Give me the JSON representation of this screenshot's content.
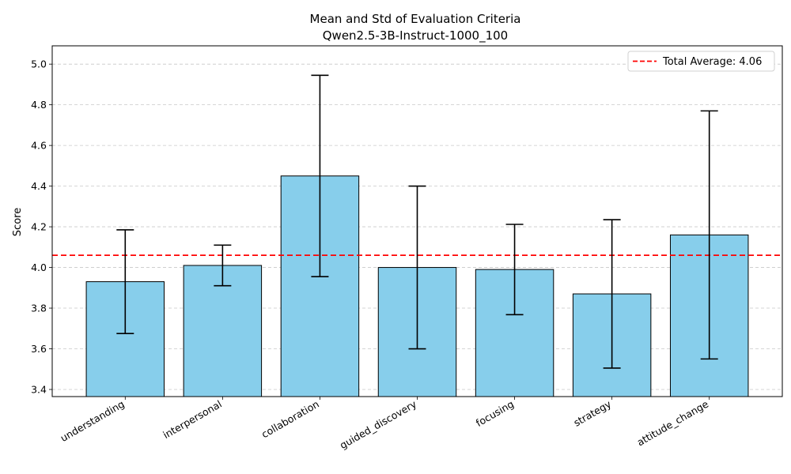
{
  "chart_data": {
    "type": "bar",
    "title": "Mean and Std of Evaluation Criteria",
    "subtitle": "Qwen2.5-3B-Instruct-1000_100",
    "xlabel": "",
    "ylabel": "Score",
    "ylim": [
      3.365,
      5.09
    ],
    "yticks": [
      3.4,
      3.6,
      3.8,
      4.0,
      4.2,
      4.4,
      4.6,
      4.8,
      5.0
    ],
    "ytick_labels": [
      "3.4",
      "3.6",
      "3.8",
      "4.0",
      "4.2",
      "4.4",
      "4.6",
      "4.8",
      "5.0"
    ],
    "categories": [
      "understanding",
      "interpersonal",
      "collaboration",
      "guided_discovery",
      "focusing",
      "strategy",
      "attitude_change"
    ],
    "values": [
      3.93,
      4.01,
      4.45,
      4.0,
      3.99,
      3.87,
      4.16
    ],
    "std": [
      0.255,
      0.1,
      0.495,
      0.4,
      0.222,
      0.365,
      0.61
    ],
    "bar_color": "#87ceeb",
    "bar_edge_color": "#000000",
    "errorbar_color": "#000000",
    "average_line": {
      "label": "Total Average: 4.06",
      "value": 4.06,
      "color": "#ff0000",
      "style": "dashed"
    },
    "grid": {
      "y": true,
      "x": false,
      "style": "dashed",
      "color": "#c8c8c8"
    },
    "legend": {
      "position": "top-right"
    }
  }
}
